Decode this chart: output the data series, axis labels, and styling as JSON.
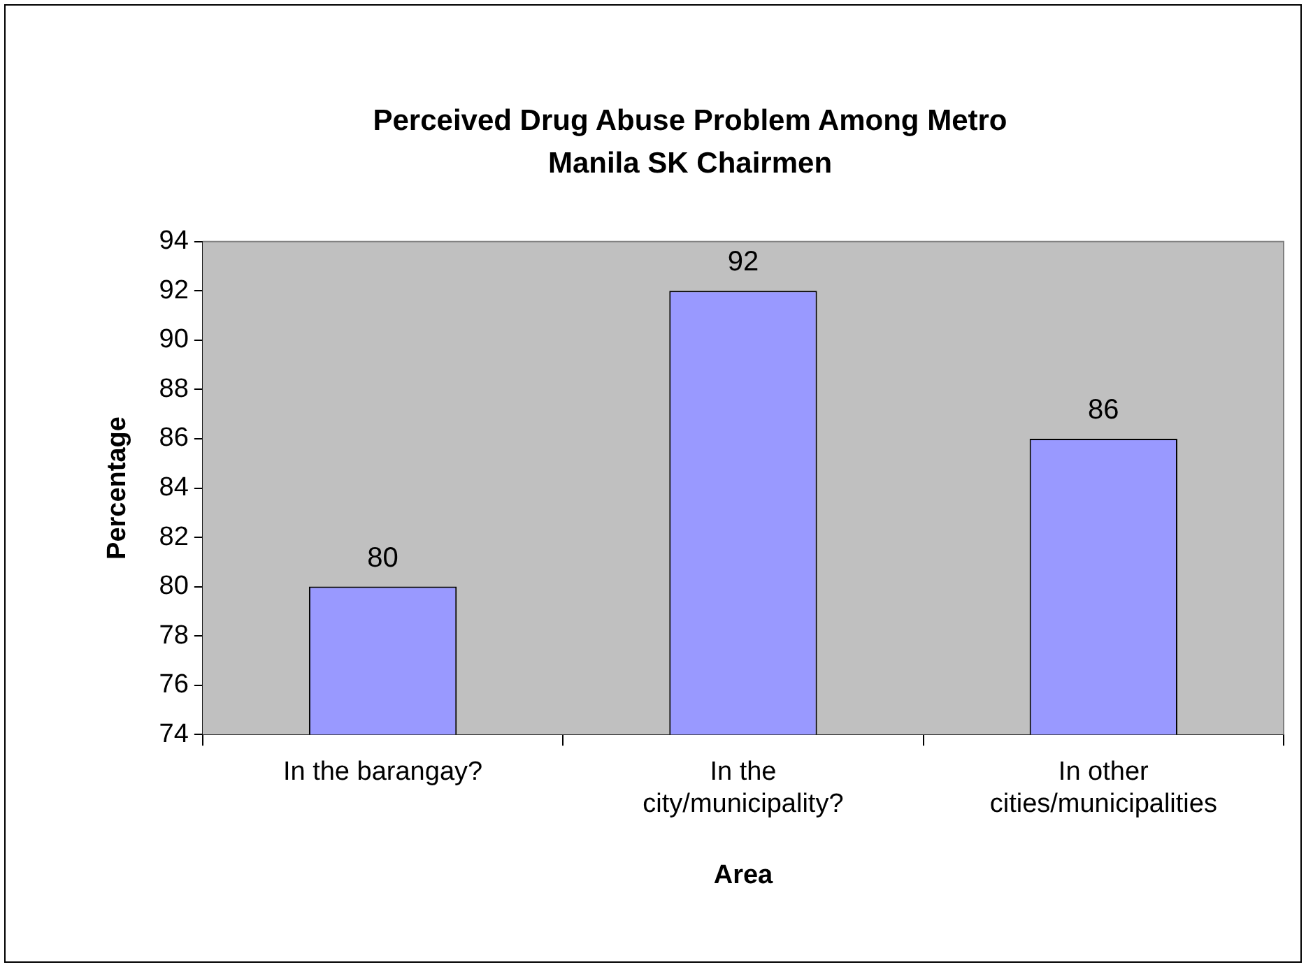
{
  "chart_data": {
    "type": "bar",
    "title": "Perceived Drug Abuse Problem Among Metro Manila SK Chairmen",
    "xlabel": "Area",
    "ylabel": "Percentage",
    "categories": [
      "In the barangay?",
      "In the city/municipality?",
      "In other cities/municipalities"
    ],
    "values": [
      80,
      92,
      86
    ],
    "color": "#9999ff",
    "ylim": [
      74,
      94
    ],
    "yticks": [
      74,
      76,
      78,
      80,
      82,
      84,
      86,
      88,
      90,
      92,
      94
    ],
    "legend": false,
    "data_labels": true
  }
}
